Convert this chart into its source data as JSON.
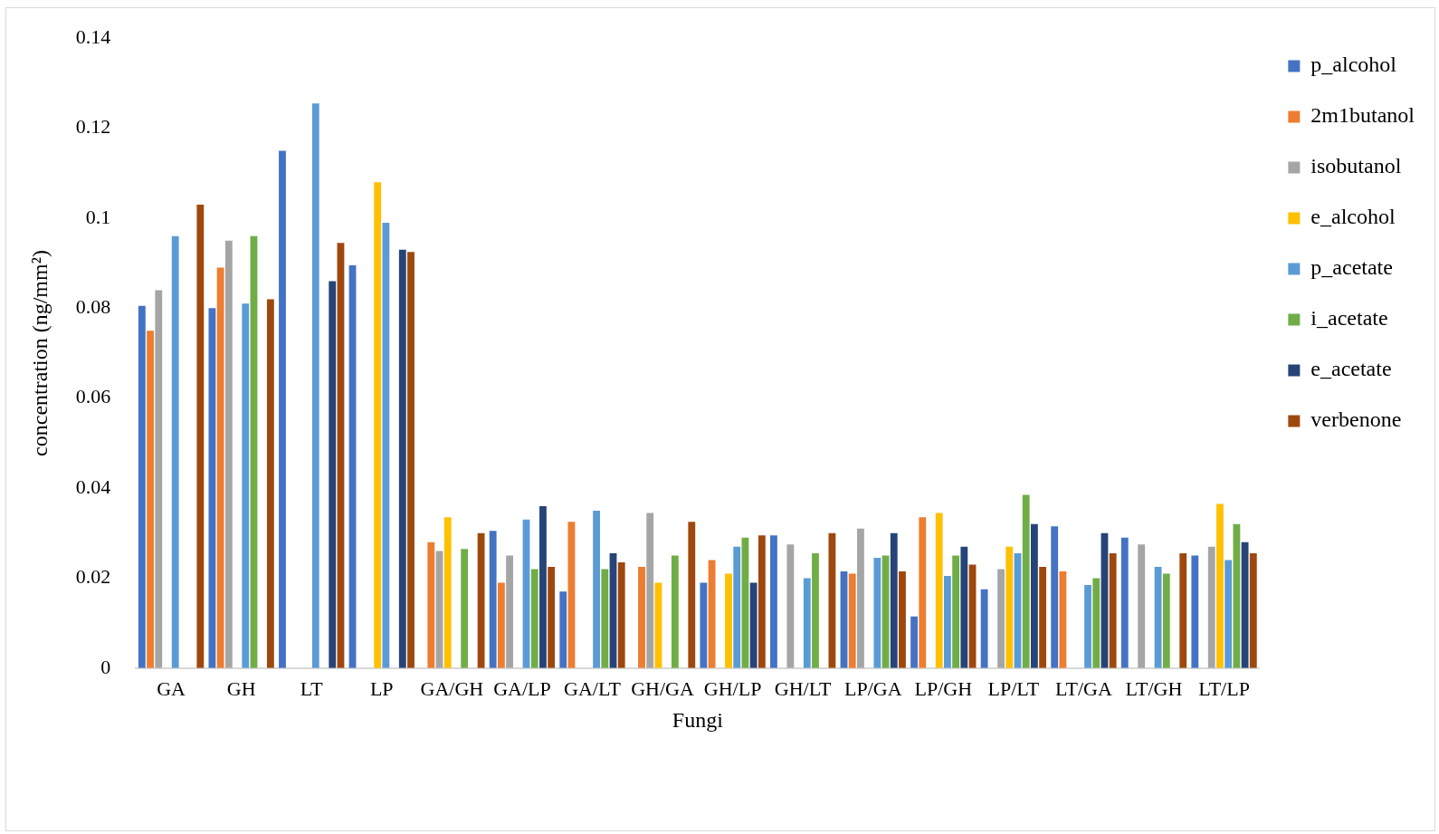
{
  "chart_data": {
    "type": "bar",
    "xlabel": "Fungi",
    "ylabel": "concentration (ng/mm²)",
    "categories": [
      "GA",
      "GH",
      "LT",
      "LP",
      "GA/GH",
      "GA/LP",
      "GA/LT",
      "GH/GA",
      "GH/LP",
      "GH/LT",
      "LP/GA",
      "LP/GH",
      "LP/LT",
      "LT/GA",
      "LT/GH",
      "LT/LP"
    ],
    "series": [
      {
        "name": "p_alcohol",
        "color": "#4472c4",
        "values": [
          0.0805,
          0.08,
          0.115,
          0.0895,
          null,
          0.0305,
          0.017,
          null,
          0.019,
          0.0295,
          0.0215,
          0.0115,
          0.0175,
          0.0315,
          0.029,
          0.025
        ]
      },
      {
        "name": "2m1butanol",
        "color": "#ed7d31",
        "values": [
          0.075,
          0.089,
          null,
          null,
          0.028,
          0.019,
          0.0325,
          0.0225,
          0.024,
          null,
          0.021,
          0.0335,
          null,
          0.0215,
          null,
          null
        ]
      },
      {
        "name": "isobutanol",
        "color": "#a5a5a5",
        "values": [
          0.084,
          0.095,
          null,
          null,
          0.026,
          0.025,
          null,
          0.0345,
          null,
          0.0275,
          0.031,
          null,
          0.022,
          null,
          0.0275,
          0.027
        ]
      },
      {
        "name": "e_alcohol",
        "color": "#ffc000",
        "values": [
          null,
          null,
          null,
          0.108,
          0.0335,
          null,
          null,
          0.019,
          0.021,
          null,
          null,
          0.0345,
          0.027,
          null,
          null,
          0.0365
        ]
      },
      {
        "name": "p_acetate",
        "color": "#5b9bd5",
        "values": [
          0.096,
          0.081,
          0.1255,
          0.099,
          null,
          0.033,
          0.035,
          null,
          0.027,
          0.02,
          0.0245,
          0.0205,
          0.0255,
          0.0185,
          0.0225,
          0.024
        ]
      },
      {
        "name": "i_acetate",
        "color": "#70ad47",
        "values": [
          null,
          0.096,
          null,
          null,
          0.0265,
          0.022,
          0.022,
          0.025,
          0.029,
          0.0255,
          0.025,
          0.025,
          0.0385,
          0.02,
          0.021,
          0.032
        ]
      },
      {
        "name": "e_acetate",
        "color": "#264478",
        "values": [
          null,
          null,
          0.086,
          0.093,
          null,
          0.036,
          0.0255,
          null,
          0.019,
          null,
          0.03,
          0.027,
          0.032,
          0.03,
          null,
          0.028
        ]
      },
      {
        "name": "verbenone",
        "color": "#9e480e",
        "values": [
          0.103,
          0.082,
          0.0945,
          0.0925,
          0.03,
          0.0225,
          0.0235,
          0.0325,
          0.0295,
          0.03,
          0.0215,
          0.023,
          0.0225,
          0.0255,
          0.0255,
          0.0255
        ]
      }
    ],
    "ylim": [
      0,
      0.14
    ],
    "yticks": [
      0,
      0.02,
      0.04,
      0.06,
      0.08,
      0.1,
      0.12,
      0.14
    ],
    "grid": false,
    "legend": "right"
  }
}
